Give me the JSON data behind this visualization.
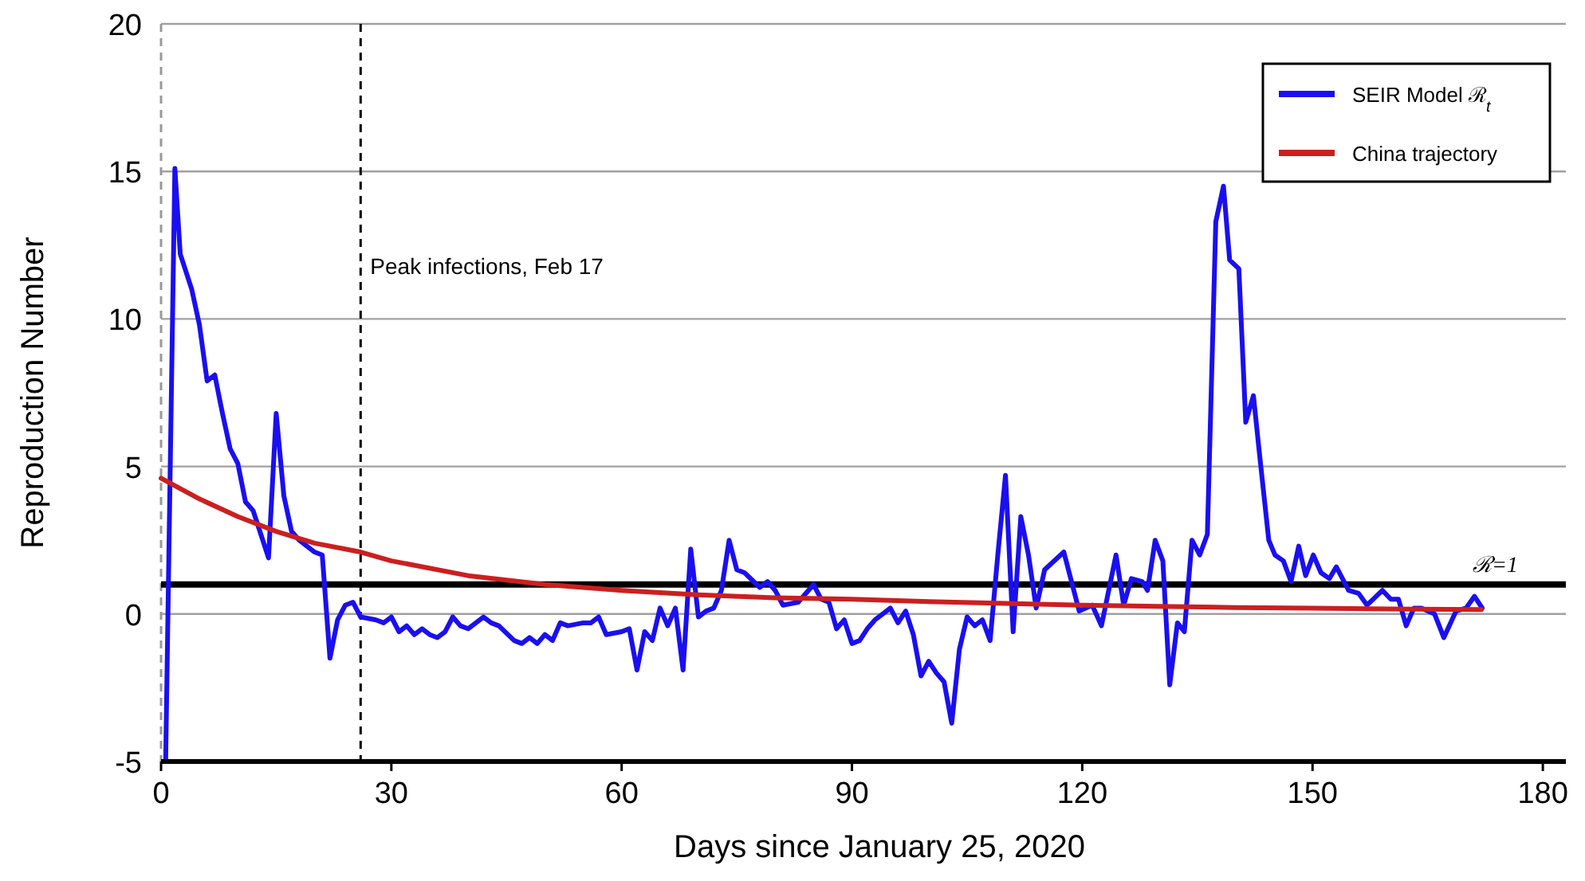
{
  "chart_data": {
    "type": "line",
    "xlabel": "Days since January 25, 2020",
    "ylabel": "Reproduction Number",
    "xlim": [
      0,
      183
    ],
    "xticks": [
      0,
      30,
      60,
      90,
      120,
      150,
      180
    ],
    "ylim": [
      -5,
      20
    ],
    "yticks": [
      -5,
      0,
      5,
      10,
      15,
      20
    ],
    "grid": "y",
    "legend": "top right",
    "line_style": "solid",
    "marker": "none",
    "series": [
      {
        "name": "SEIR Model ℛ$_{t}$",
        "color": "#1a0ff0",
        "x": [
          0.6,
          1.8,
          2.5,
          4,
          5,
          6,
          7,
          8,
          9,
          10,
          11,
          12,
          13,
          14,
          15,
          16,
          17,
          18,
          19,
          20,
          21,
          22,
          23,
          24,
          25,
          26,
          28,
          29,
          30,
          31,
          32,
          33,
          34,
          35,
          36,
          37,
          38,
          39,
          40,
          42,
          43,
          44,
          46,
          47,
          48,
          49,
          50,
          51,
          52,
          53,
          55,
          56,
          57,
          58,
          60,
          61,
          62,
          63,
          64,
          65,
          66,
          67,
          68,
          69,
          70,
          71,
          72,
          73,
          74,
          75,
          76,
          78,
          79,
          80,
          81,
          83,
          85,
          86,
          87,
          88,
          89,
          90,
          91,
          92,
          93,
          94,
          95,
          96,
          97,
          98,
          99,
          100,
          101,
          102,
          103,
          104,
          105,
          106,
          107,
          108,
          109,
          110,
          111,
          112,
          113,
          114,
          115.1,
          117.6,
          119.6,
          121.3,
          122.5,
          124.4,
          125.4,
          126.4,
          127.8,
          128.5,
          129.5,
          130.5,
          131.4,
          132.4,
          133.3,
          134.3,
          135.3,
          136.3,
          137.4,
          138.4,
          139.2,
          140.4,
          141.3,
          142.3,
          143.1,
          144.3,
          145.1,
          146.2,
          147.2,
          148.2,
          149.1,
          150.1,
          151.1,
          152.2,
          153.1,
          154.7,
          156,
          157.1,
          159.1,
          160.2,
          161.2,
          162.2,
          163.2,
          164.2,
          165.9,
          167.1,
          168.7,
          170,
          171.1,
          172.1
        ],
        "values": [
          -5,
          15.1,
          12.2,
          11,
          9.8,
          7.9,
          8.1,
          6.8,
          5.6,
          5.1,
          3.8,
          3.5,
          2.7,
          1.9,
          6.8,
          4,
          2.8,
          2.5,
          2.3,
          2.1,
          2,
          -1.5,
          -0.2,
          0.3,
          0.4,
          -0.1,
          -0.2,
          -0.3,
          -0.1,
          -0.6,
          -0.4,
          -0.7,
          -0.5,
          -0.7,
          -0.8,
          -0.6,
          -0.1,
          -0.4,
          -0.5,
          -0.1,
          -0.3,
          -0.4,
          -0.9,
          -1,
          -0.8,
          -1,
          -0.7,
          -0.9,
          -0.3,
          -0.4,
          -0.3,
          -0.3,
          -0.1,
          -0.7,
          -0.6,
          -0.5,
          -1.9,
          -0.6,
          -0.9,
          0.2,
          -0.4,
          0.2,
          -1.9,
          2.2,
          -0.1,
          0.1,
          0.2,
          0.8,
          2.5,
          1.5,
          1.4,
          0.9,
          1.1,
          0.8,
          0.3,
          0.4,
          1,
          0.5,
          0.4,
          -0.5,
          -0.2,
          -1,
          -0.9,
          -0.5,
          -0.2,
          0,
          0.2,
          -0.3,
          0.1,
          -0.7,
          -2.1,
          -1.6,
          -2,
          -2.3,
          -3.7,
          -1.2,
          -0.1,
          -0.4,
          -0.2,
          -0.9,
          2,
          4.7,
          -0.6,
          3.3,
          2,
          0.2,
          1.5,
          2.1,
          0.1,
          0.3,
          -0.4,
          2,
          0.3,
          1.2,
          1.1,
          0.8,
          2.5,
          1.8,
          -2.4,
          -0.3,
          -0.6,
          2.5,
          2,
          2.7,
          13.3,
          14.5,
          12,
          11.7,
          6.5,
          7.4,
          5.4,
          2.5,
          2,
          1.8,
          1.1,
          2.3,
          1.3,
          2,
          1.4,
          1.2,
          1.6,
          0.8,
          0.7,
          0.3,
          0.8,
          0.5,
          0.5,
          -0.4,
          0.2,
          0.2,
          0,
          -0.8,
          0.1,
          0.2,
          0.6,
          0.2
        ]
      },
      {
        "name": "China trajectory",
        "color": "#cc1f1f",
        "x": [
          0,
          5,
          10,
          15,
          20,
          26,
          30,
          40,
          50,
          60,
          70,
          80,
          90,
          100,
          110,
          120,
          130,
          140,
          150,
          160,
          172
        ],
        "values": [
          4.6,
          3.9,
          3.3,
          2.8,
          2.4,
          2.1,
          1.8,
          1.3,
          1,
          0.8,
          0.65,
          0.55,
          0.5,
          0.42,
          0.36,
          0.3,
          0.26,
          0.22,
          0.2,
          0.17,
          0.15
        ]
      }
    ],
    "ref_lines": [
      {
        "axis": "x",
        "value": 0,
        "label": null,
        "color": "#999999",
        "line_style": "dashed"
      },
      {
        "axis": "x",
        "value": 26,
        "label": "Peak infections, Feb 17",
        "color": "#000000",
        "line_style": "dashed"
      },
      {
        "axis": "y",
        "value": 1,
        "label": "ℛ=1",
        "color": "#000000",
        "line_style": "solid"
      }
    ]
  }
}
